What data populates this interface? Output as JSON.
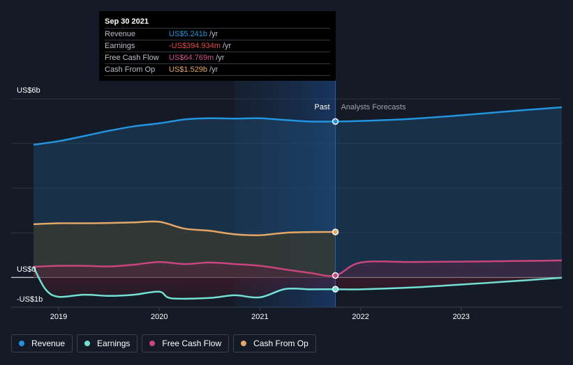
{
  "chart_data": {
    "type": "area",
    "y_axis_labels": [
      "US$6b",
      "US$0",
      "-US$1b"
    ],
    "ylim": [
      -1.0,
      6.0
    ],
    "xlim": [
      2018.75,
      2024.0
    ],
    "x_ticks": [
      {
        "value": 2019.0,
        "label": "2019"
      },
      {
        "value": 2020.0,
        "label": "2020"
      },
      {
        "value": 2021.0,
        "label": "2021"
      },
      {
        "value": 2022.0,
        "label": "2022"
      },
      {
        "value": 2023.0,
        "label": "2023"
      }
    ],
    "past_label": "Past",
    "forecast_label": "Analysts Forecasts",
    "divider_x": 2021.75,
    "highlight_start_x": 2020.75,
    "series": [
      {
        "key": "revenue",
        "name": "Revenue",
        "color": "#2394df",
        "x": [
          2018.75,
          2019.0,
          2019.25,
          2019.5,
          2019.75,
          2020.0,
          2020.25,
          2020.5,
          2020.75,
          2021.0,
          2021.25,
          2021.5,
          2021.75,
          2022.0,
          2022.5,
          2023.0,
          2023.5,
          2024.0
        ],
        "values": [
          4.46,
          4.58,
          4.75,
          4.93,
          5.08,
          5.18,
          5.31,
          5.35,
          5.34,
          5.35,
          5.29,
          5.24,
          5.241,
          5.26,
          5.33,
          5.45,
          5.59,
          5.72
        ]
      },
      {
        "key": "cashfromop",
        "name": "Cash From Op",
        "color": "#e5a767",
        "x": [
          2018.75,
          2019.0,
          2019.25,
          2019.5,
          2019.75,
          2020.0,
          2020.25,
          2020.5,
          2020.75,
          2021.0,
          2021.25,
          2021.5,
          2021.75
        ],
        "values": [
          1.79,
          1.82,
          1.82,
          1.83,
          1.85,
          1.87,
          1.64,
          1.57,
          1.45,
          1.42,
          1.5,
          1.525,
          1.529
        ]
      },
      {
        "key": "fcf",
        "name": "Free Cash Flow",
        "color": "#c9457d",
        "x": [
          2018.75,
          2019.0,
          2019.25,
          2019.5,
          2019.75,
          2020.0,
          2020.25,
          2020.5,
          2020.75,
          2021.0,
          2021.25,
          2021.5,
          2021.75,
          2022.0,
          2022.5,
          2023.0,
          2023.5,
          2024.0
        ],
        "values": [
          0.36,
          0.39,
          0.39,
          0.37,
          0.43,
          0.52,
          0.45,
          0.5,
          0.45,
          0.39,
          0.27,
          0.15,
          0.065,
          0.5,
          0.52,
          0.53,
          0.55,
          0.57
        ]
      },
      {
        "key": "earnings",
        "name": "Earnings",
        "color": "#73e0d4",
        "x": [
          2018.75,
          2018.87,
          2019.0,
          2019.25,
          2019.5,
          2019.75,
          2020.0,
          2020.12,
          2020.5,
          2020.75,
          2021.0,
          2021.25,
          2021.5,
          2021.75,
          2022.0,
          2022.5,
          2023.0,
          2023.5,
          2024.0
        ],
        "values": [
          0.35,
          -0.4,
          -0.65,
          -0.58,
          -0.62,
          -0.58,
          -0.48,
          -0.7,
          -0.69,
          -0.6,
          -0.67,
          -0.39,
          -0.4,
          -0.395,
          -0.4,
          -0.34,
          -0.24,
          -0.13,
          -0.01
        ]
      }
    ]
  },
  "tooltip": {
    "date": "Sep 30 2021",
    "rows": [
      {
        "label": "Revenue",
        "value": "US$5.241b",
        "unit": "/yr",
        "color": "#2394df"
      },
      {
        "label": "Earnings",
        "value": "-US$394.934m",
        "unit": "/yr",
        "color": "#e64b4b"
      },
      {
        "label": "Free Cash Flow",
        "value": "US$64.769m",
        "unit": "/yr",
        "color": "#d0508a"
      },
      {
        "label": "Cash From Op",
        "value": "US$1.529b",
        "unit": "/yr",
        "color": "#e5a767"
      }
    ]
  },
  "legend": [
    {
      "label": "Revenue",
      "color": "#2394df"
    },
    {
      "label": "Earnings",
      "color": "#73e0d4"
    },
    {
      "label": "Free Cash Flow",
      "color": "#c9457d"
    },
    {
      "label": "Cash From Op",
      "color": "#e5a767"
    }
  ]
}
